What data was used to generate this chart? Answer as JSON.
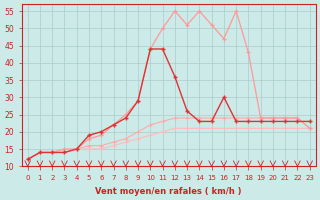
{
  "xlabel": "Vent moyen/en rafales ( km/h )",
  "background_color": "#cceae8",
  "grid_color": "#aacccc",
  "x": [
    0,
    1,
    2,
    3,
    4,
    5,
    6,
    7,
    8,
    9,
    10,
    11,
    12,
    13,
    14,
    15,
    16,
    17,
    18,
    19,
    20,
    21,
    22,
    23
  ],
  "ylim": [
    10,
    57
  ],
  "yticks": [
    10,
    15,
    20,
    25,
    30,
    35,
    40,
    45,
    50,
    55
  ],
  "lines": [
    {
      "x": [
        0,
        1,
        2,
        3,
        4,
        5,
        6,
        7,
        8,
        9,
        10,
        11,
        12,
        13,
        14,
        15,
        16,
        17,
        18,
        19,
        20,
        21,
        22,
        23
      ],
      "y": [
        12,
        14,
        14,
        14,
        15,
        15,
        15,
        16,
        17,
        18,
        19,
        20,
        21,
        21,
        21,
        21,
        21,
        21,
        21,
        21,
        21,
        21,
        21,
        21
      ],
      "color": "#ffbbbb",
      "lw": 0.8,
      "ms": 2.5
    },
    {
      "x": [
        0,
        1,
        2,
        3,
        4,
        5,
        6,
        7,
        8,
        9,
        10,
        11,
        12,
        13,
        14,
        15,
        16,
        17,
        18,
        19,
        20,
        21,
        22,
        23
      ],
      "y": [
        12,
        14,
        14,
        14,
        15,
        16,
        16,
        17,
        18,
        20,
        22,
        23,
        24,
        24,
        24,
        24,
        24,
        24,
        24,
        24,
        24,
        24,
        24,
        21
      ],
      "color": "#ffaaaa",
      "lw": 0.8,
      "ms": 2.5
    },
    {
      "x": [
        0,
        1,
        2,
        3,
        4,
        5,
        6,
        7,
        8,
        9,
        10,
        11,
        12,
        13,
        14,
        15,
        16,
        17,
        18,
        19,
        20,
        21,
        22,
        23
      ],
      "y": [
        12,
        14,
        14,
        15,
        15,
        18,
        19,
        22,
        25,
        29,
        44,
        50,
        55,
        51,
        55,
        51,
        47,
        55,
        43,
        24,
        24,
        24,
        24,
        21
      ],
      "color": "#ff9999",
      "lw": 0.9,
      "ms": 3.0
    },
    {
      "x": [
        0,
        1,
        2,
        3,
        4,
        5,
        6,
        7,
        8,
        9,
        10,
        11,
        12,
        13,
        14,
        15,
        16,
        17,
        18,
        19,
        20,
        21,
        22,
        23
      ],
      "y": [
        12,
        14,
        14,
        14,
        15,
        19,
        20,
        22,
        24,
        29,
        44,
        44,
        36,
        26,
        23,
        23,
        30,
        23,
        23,
        23,
        23,
        23,
        23,
        23
      ],
      "color": "#dd3333",
      "lw": 1.0,
      "ms": 3.5
    }
  ]
}
